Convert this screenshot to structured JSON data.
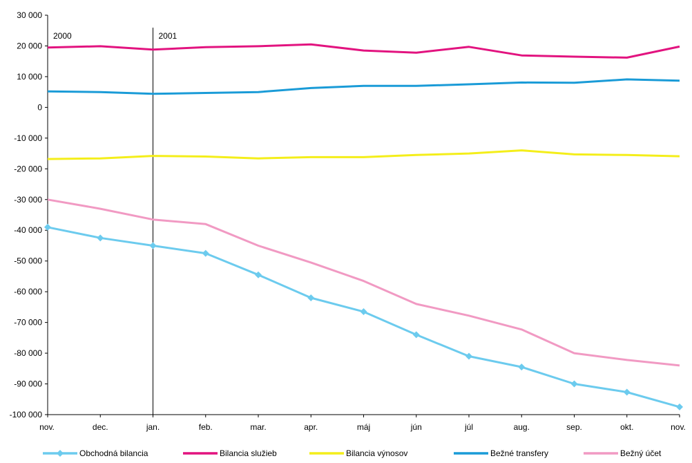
{
  "chart_data": {
    "type": "line",
    "categories": [
      "nov.",
      "dec.",
      "jan.",
      "feb.",
      "mar.",
      "apr.",
      "máj",
      "jún",
      "júl",
      "aug.",
      "sep.",
      "okt.",
      "nov."
    ],
    "ylim": [
      -100000,
      30000
    ],
    "yticks": [
      30000,
      20000,
      10000,
      0,
      -10000,
      -20000,
      -30000,
      -40000,
      -50000,
      -60000,
      -70000,
      -80000,
      -90000,
      -100000
    ],
    "ytick_labels": [
      "30 000",
      "20 000",
      "10 000",
      "0",
      "-10 000",
      "-20 000",
      "-30 000",
      "-40 000",
      "-50 000",
      "-60 000",
      "-70 000",
      "-80 000",
      "-90 000",
      "-100 000"
    ],
    "grid": false,
    "legend_position": "bottom",
    "annotations": [
      {
        "text": "2000",
        "category_index": 0
      },
      {
        "text": "2001",
        "category_index": 2
      }
    ],
    "divider_category_index": 2,
    "series": [
      {
        "name": "Obchodná bilancia",
        "color": "#6ccbee",
        "marker": "diamond",
        "values": [
          -39000,
          -42500,
          -45000,
          -47500,
          -54500,
          -62000,
          -66500,
          -74000,
          -81000,
          -84500,
          -90000,
          -92700,
          -97500
        ]
      },
      {
        "name": "Bilancia služieb",
        "color": "#e2137f",
        "marker": "none",
        "values": [
          19500,
          19900,
          18800,
          19600,
          19900,
          20500,
          18500,
          17800,
          19700,
          16900,
          16500,
          16200,
          19800
        ]
      },
      {
        "name": "Bilancia výnosov",
        "color": "#f4ee1a",
        "marker": "none",
        "values": [
          -16800,
          -16600,
          -15800,
          -16000,
          -16600,
          -16200,
          -16200,
          -15500,
          -15000,
          -14000,
          -15300,
          -15500,
          -15900
        ]
      },
      {
        "name": "Bežné transfery",
        "color": "#1a9bd7",
        "marker": "none",
        "values": [
          5200,
          5000,
          4400,
          4700,
          5000,
          6300,
          7000,
          7000,
          7500,
          8100,
          8000,
          9100,
          8700
        ]
      },
      {
        "name": "Bežný účet",
        "color": "#f19ac3",
        "marker": "none",
        "values": [
          -30000,
          -33000,
          -36500,
          -38000,
          -45000,
          -50500,
          -56500,
          -64000,
          -67800,
          -72300,
          -80000,
          -82200,
          -84000
        ]
      }
    ]
  }
}
